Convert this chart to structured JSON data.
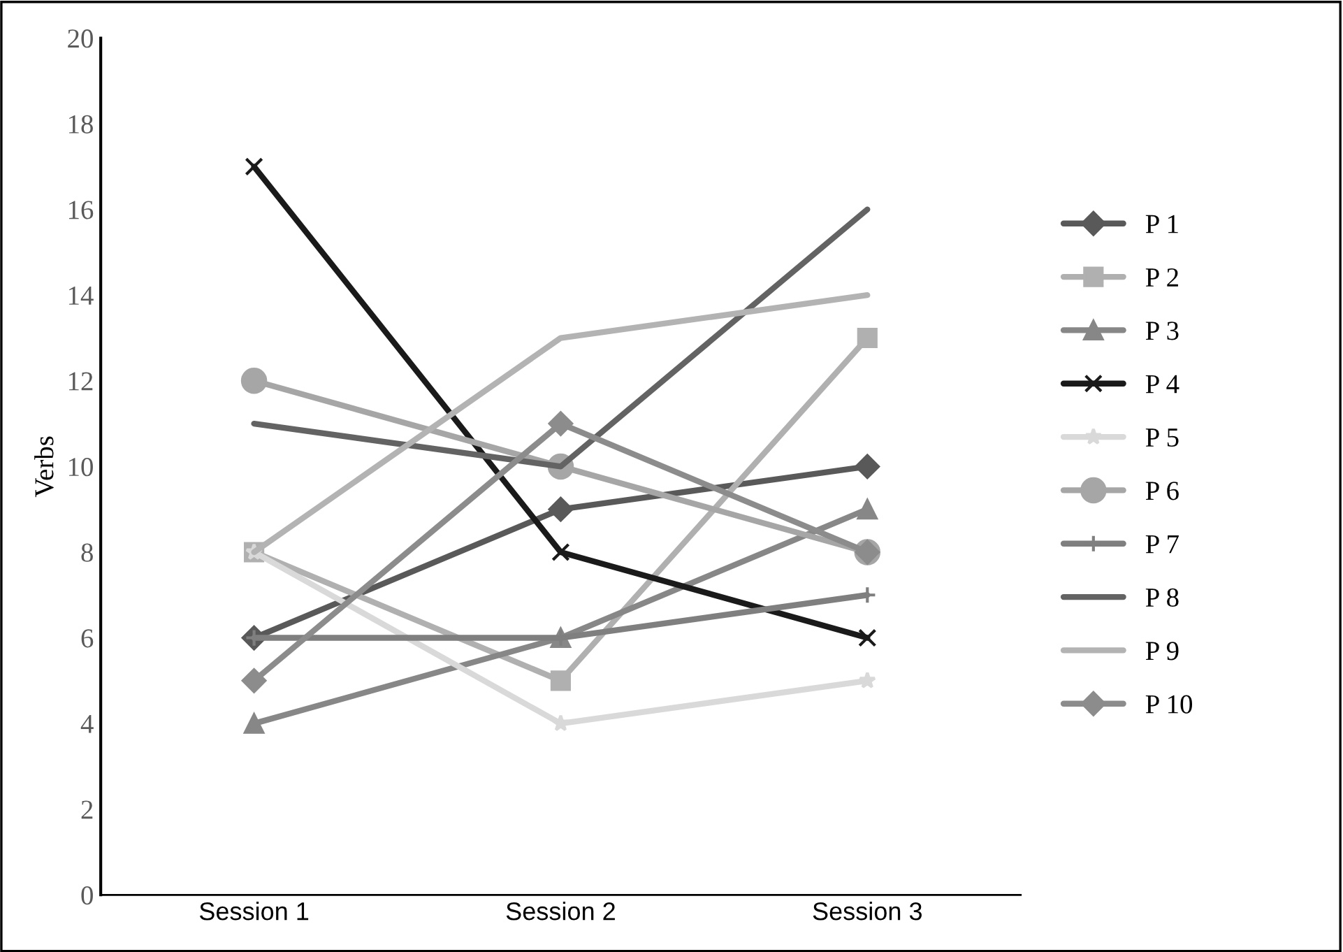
{
  "chart_data": {
    "type": "line",
    "ylabel": "Verbs",
    "categories": [
      "Session 1",
      "Session 2",
      "Session 3"
    ],
    "ylim": [
      0,
      20
    ],
    "yticks": [
      0,
      2,
      4,
      6,
      8,
      10,
      12,
      14,
      16,
      18,
      20
    ],
    "grid": false,
    "legend": "right",
    "line_style": "solid",
    "series": [
      {
        "name": "P 1",
        "color": "#595959",
        "marker": "diamond",
        "values": [
          6,
          9,
          10
        ]
      },
      {
        "name": "P 2",
        "color": "#b0b0b0",
        "marker": "square",
        "values": [
          8,
          5,
          13
        ]
      },
      {
        "name": "P 3",
        "color": "#878787",
        "marker": "triangle",
        "values": [
          4,
          6,
          9
        ]
      },
      {
        "name": "P 4",
        "color": "#1a1a1a",
        "marker": "cross",
        "values": [
          17,
          8,
          6
        ]
      },
      {
        "name": "P 5",
        "color": "#d9d9d9",
        "marker": "star",
        "values": [
          8,
          4,
          5
        ]
      },
      {
        "name": "P 6",
        "color": "#a6a6a6",
        "marker": "circle",
        "values": [
          12,
          10,
          8
        ]
      },
      {
        "name": "P 7",
        "color": "#7f7f7f",
        "marker": "plus",
        "values": [
          6,
          6,
          7
        ]
      },
      {
        "name": "P 8",
        "color": "#636363",
        "marker": "none",
        "values": [
          11,
          10,
          16
        ]
      },
      {
        "name": "P 9",
        "color": "#b3b3b3",
        "marker": "none",
        "values": [
          8,
          13,
          14
        ]
      },
      {
        "name": "P 10",
        "color": "#8c8c8c",
        "marker": "diamond",
        "values": [
          5,
          11,
          8
        ]
      }
    ]
  }
}
